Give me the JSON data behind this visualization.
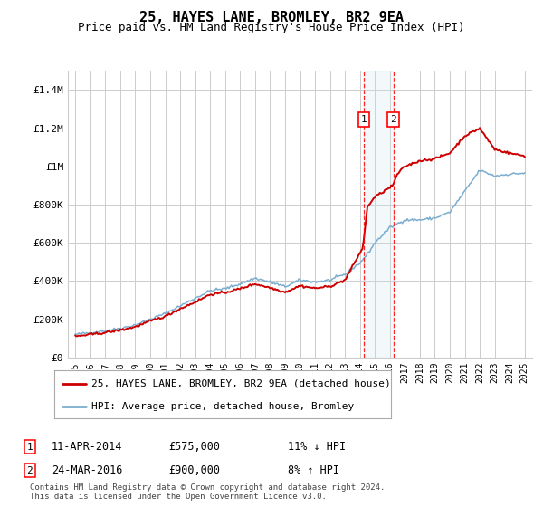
{
  "title": "25, HAYES LANE, BROMLEY, BR2 9EA",
  "subtitle": "Price paid vs. HM Land Registry's House Price Index (HPI)",
  "ylim": [
    0,
    1500000
  ],
  "yticks": [
    0,
    200000,
    400000,
    600000,
    800000,
    1000000,
    1200000,
    1400000
  ],
  "ytick_labels": [
    "£0",
    "£200K",
    "£400K",
    "£600K",
    "£800K",
    "£1M",
    "£1.2M",
    "£1.4M"
  ],
  "xmin": 1994.5,
  "xmax": 2025.5,
  "background_color": "#ffffff",
  "grid_color": "#cccccc",
  "sale1_date": 2014.27,
  "sale1_price": 575000,
  "sale2_date": 2016.23,
  "sale2_price": 900000,
  "red_line_color": "#cc0000",
  "blue_line_color": "#7aadcf",
  "shade_color": "#d0e4f0",
  "legend_label_red": "25, HAYES LANE, BROMLEY, BR2 9EA (detached house)",
  "legend_label_blue": "HPI: Average price, detached house, Bromley",
  "footnote1": "Contains HM Land Registry data © Crown copyright and database right 2024.",
  "footnote2": "This data is licensed under the Open Government Licence v3.0.",
  "title_fontsize": 11,
  "subtitle_fontsize": 9,
  "tick_fontsize": 8,
  "annot_fontsize": 8.5
}
